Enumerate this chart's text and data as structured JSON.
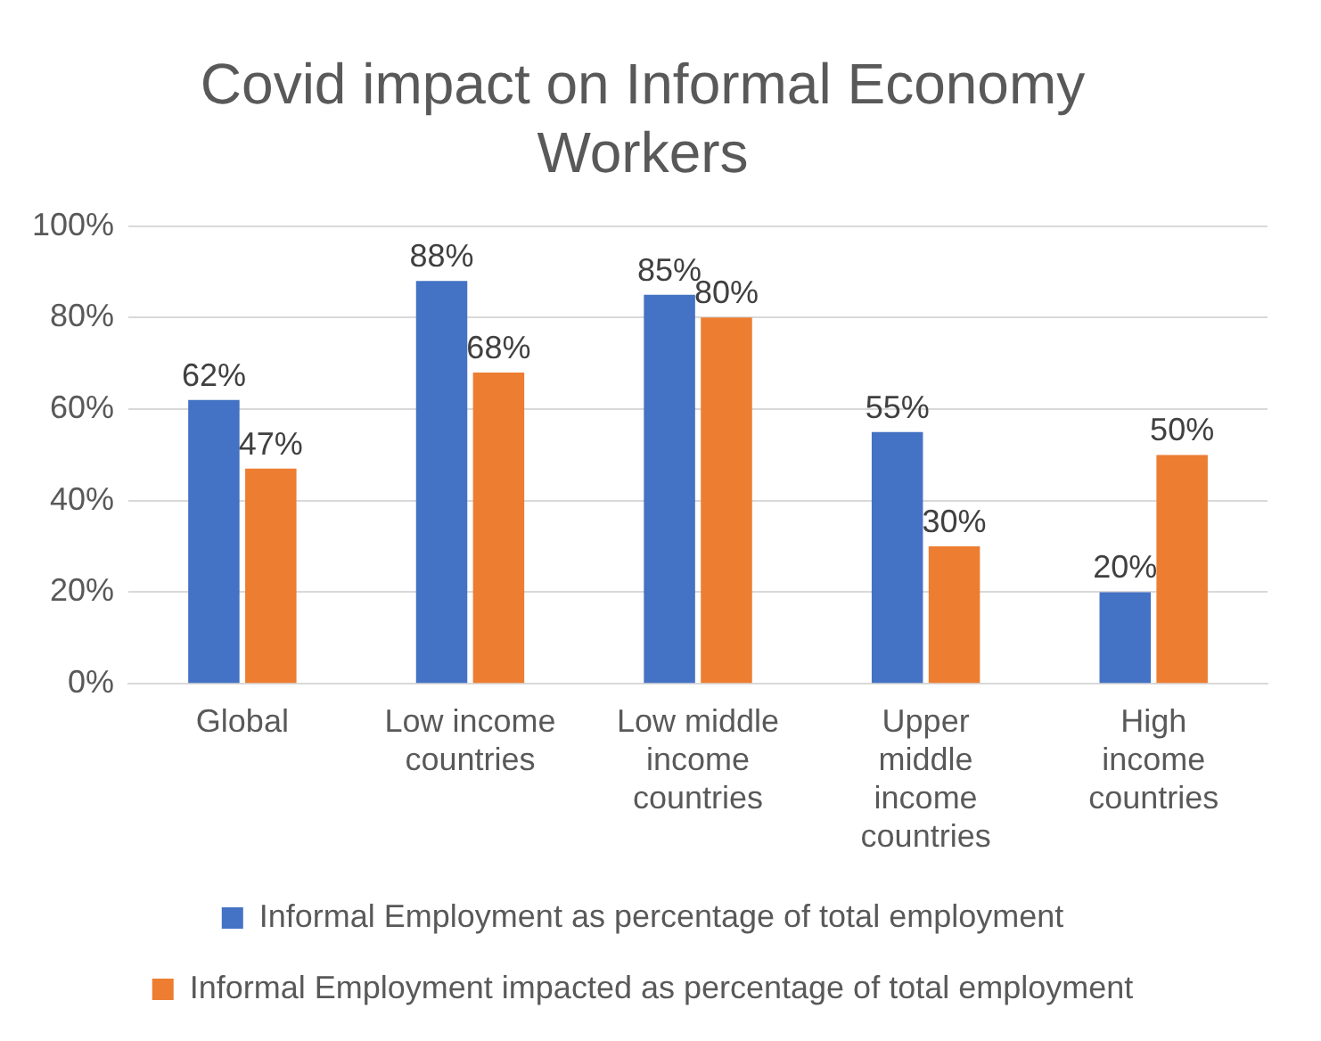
{
  "chart_data": {
    "type": "bar",
    "title": "Covid impact on Informal Economy Workers",
    "categories": [
      "Global",
      "Low income countries",
      "Low middle income countries",
      "Upper middle income countries",
      "High income countries"
    ],
    "series": [
      {
        "name": "Informal Employment as percentage of total employment",
        "color": "#4472c4",
        "values": [
          62,
          88,
          85,
          55,
          20
        ],
        "value_labels": [
          "62%",
          "88%",
          "85%",
          "55%",
          "20%"
        ]
      },
      {
        "name": "Informal Employment impacted as percentage of total employment",
        "color": "#ed7d31",
        "values": [
          47,
          68,
          80,
          30,
          50
        ],
        "value_labels": [
          "47%",
          "68%",
          "80%",
          "30%",
          "50%"
        ]
      }
    ],
    "ylim": [
      0,
      100
    ],
    "yticks": [
      {
        "value": 0,
        "label": "0%"
      },
      {
        "value": 20,
        "label": "20%"
      },
      {
        "value": 40,
        "label": "40%"
      },
      {
        "value": 60,
        "label": "60%"
      },
      {
        "value": 80,
        "label": "80%"
      },
      {
        "value": 100,
        "label": "100%"
      }
    ],
    "grid": "y",
    "legend": "bottom"
  }
}
